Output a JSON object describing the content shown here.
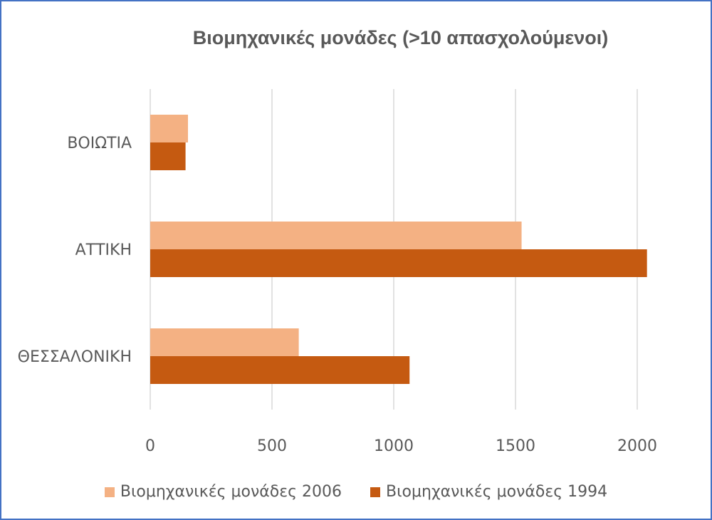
{
  "chart_data": {
    "type": "bar",
    "orientation": "horizontal",
    "title": "Βιομηχανικές μονάδες (>10 απασχολούμενοι)",
    "categories": [
      "ΒΟΙΩΤΙΑ",
      "ΑΤΤΙΚΗ",
      "ΘΕΣΣΑΛΟΝΙΚΗ"
    ],
    "series": [
      {
        "name": "Βιομηχανικές μονάδες 2006",
        "color": "#f4b183",
        "values": [
          155,
          1525,
          610
        ]
      },
      {
        "name": "Βιομηχανικές μονάδες 1994",
        "color": "#c55a11",
        "values": [
          145,
          2040,
          1065
        ]
      }
    ],
    "xlim": [
      0,
      2000
    ],
    "xticks": [
      0,
      500,
      1000,
      1500,
      2000
    ],
    "grid": true,
    "legend": "bottom"
  }
}
